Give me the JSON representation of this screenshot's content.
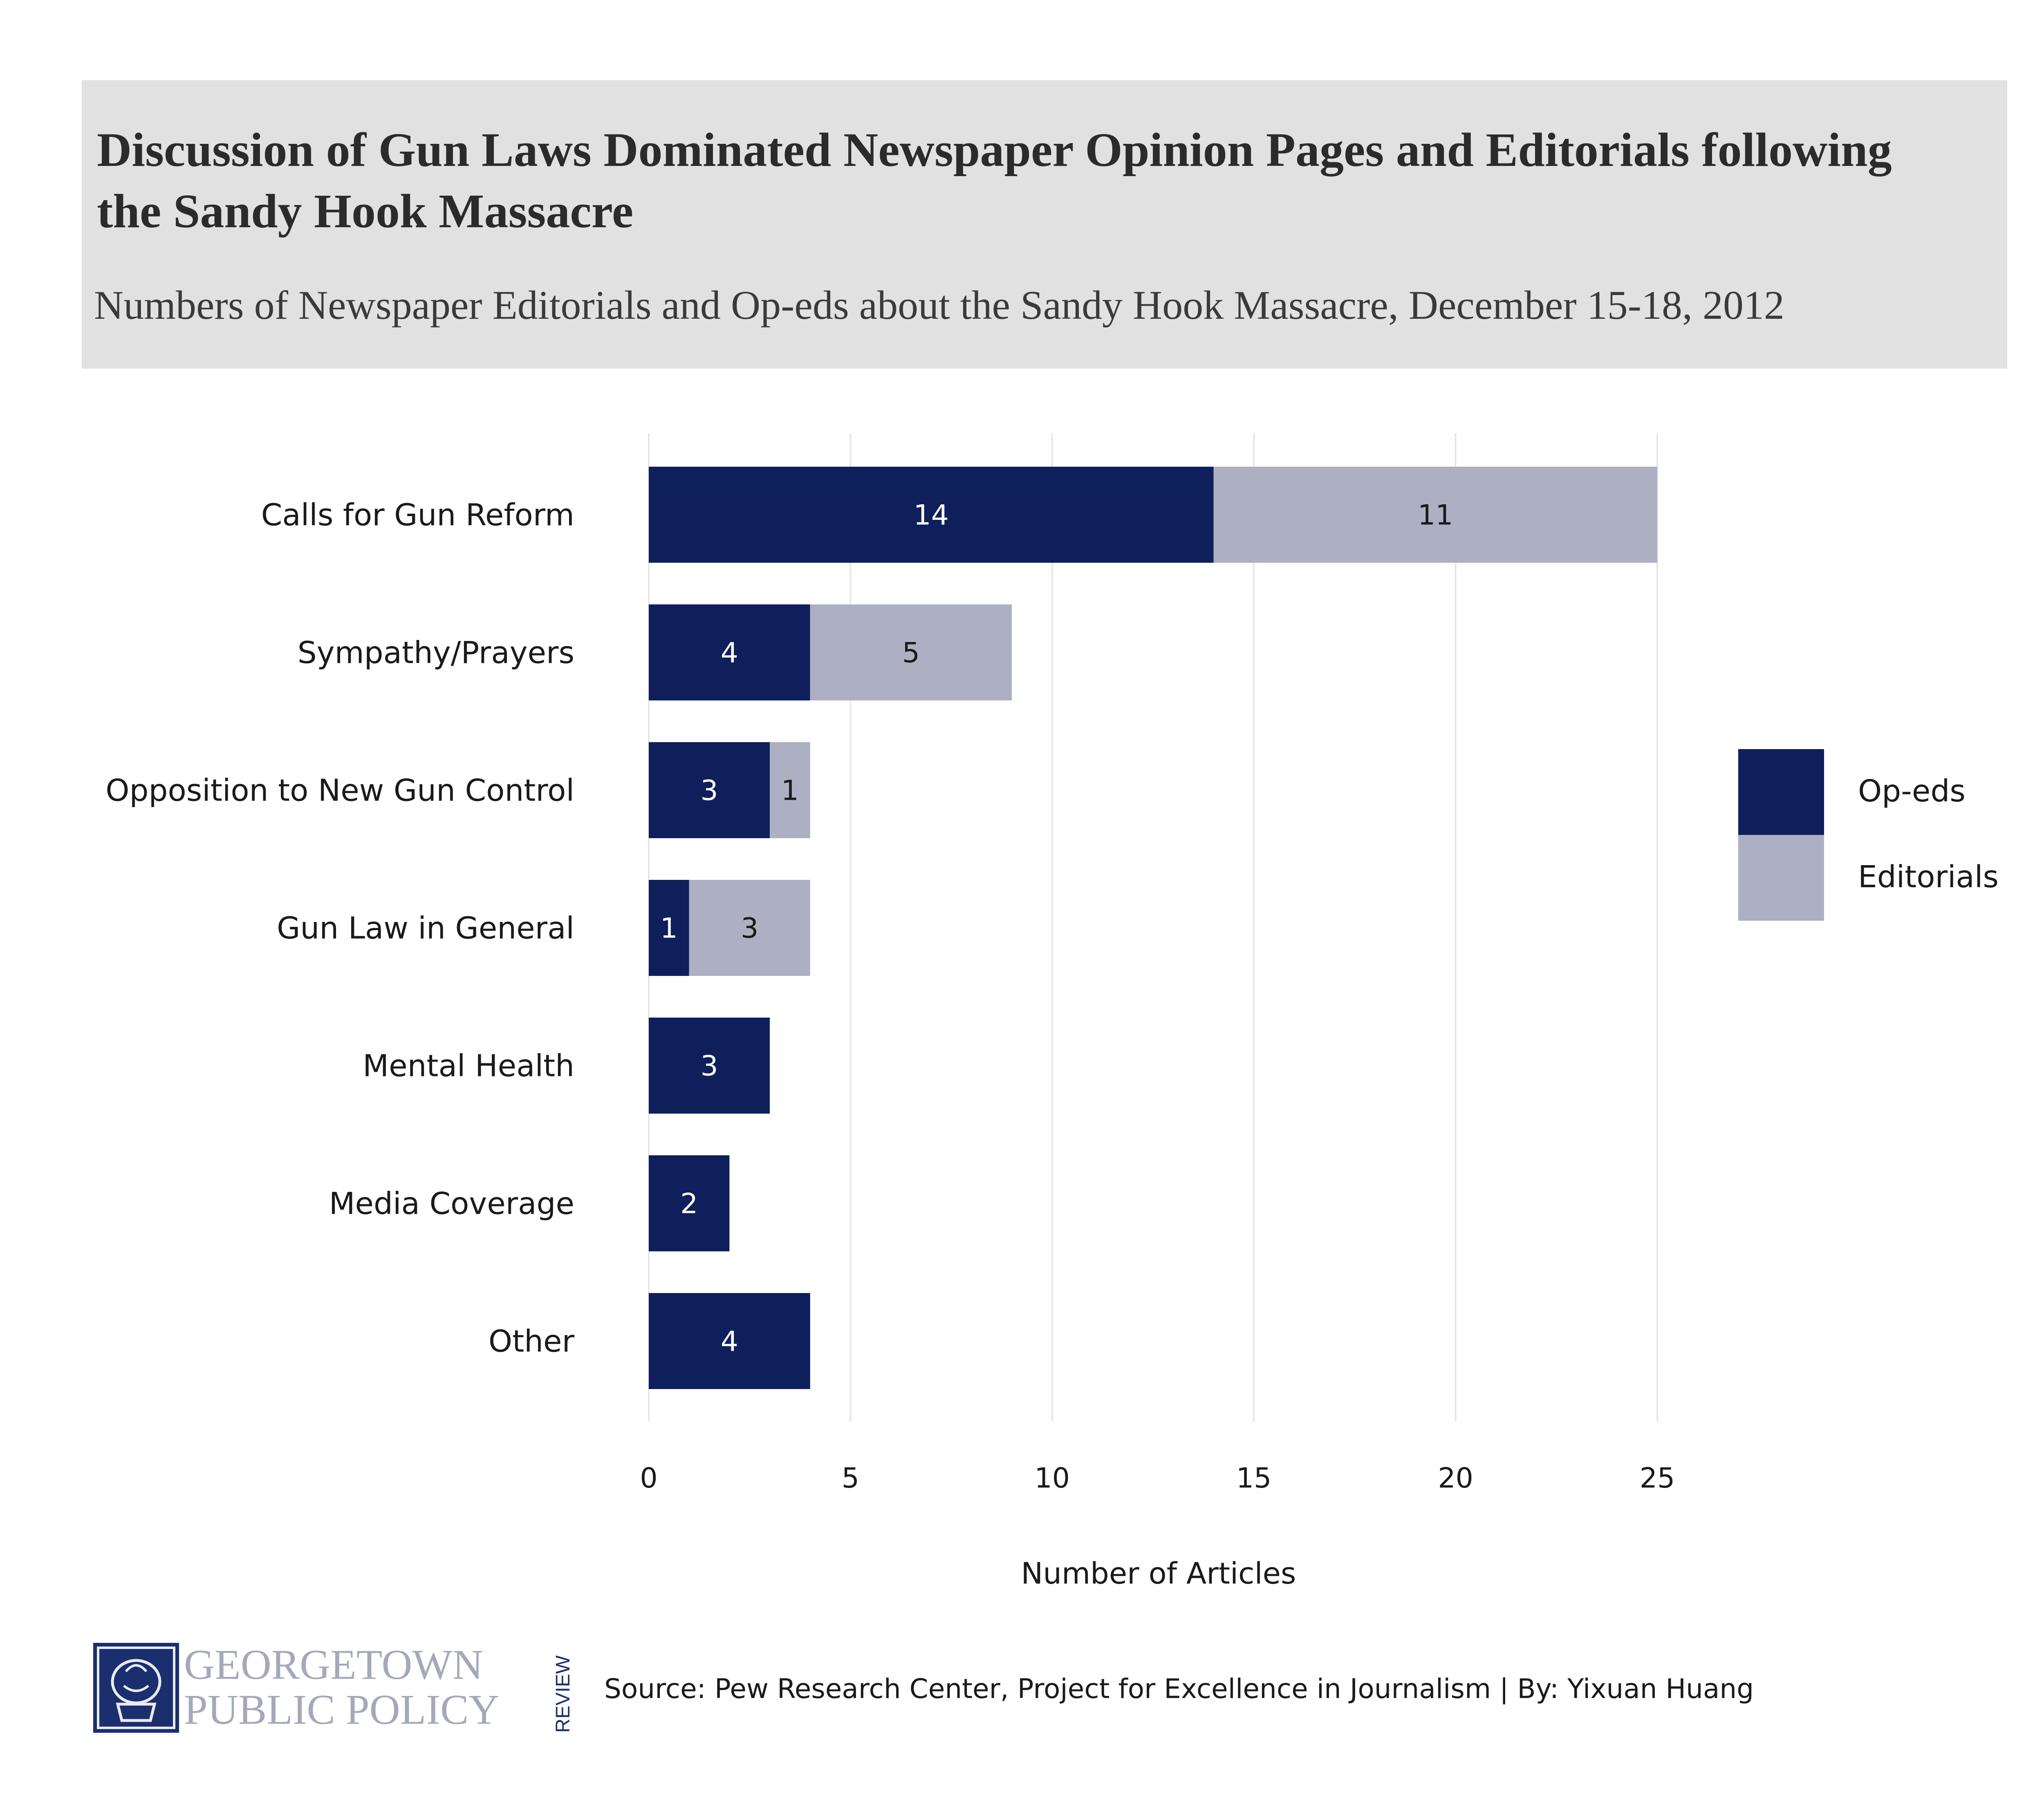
{
  "header": {
    "title": "Discussion of Gun Laws Dominated Newspaper Opinion Pages and Editorials following the Sandy Hook Massacre",
    "subtitle": "Numbers of Newspaper Editorials and Op-eds about the Sandy Hook Massacre, December 15-18, 2012"
  },
  "colors": {
    "header_background": "#e1e1e1",
    "oped": "#0e1f5b",
    "editorial": "#adb0c2",
    "grid": "#e6e6e6",
    "logo_text": "#a4a9ba"
  },
  "chart_data": {
    "type": "bar",
    "orientation": "horizontal",
    "stacked": true,
    "title": "Discussion of Gun Laws Dominated Newspaper Opinion Pages and Editorials following the Sandy Hook Massacre",
    "subtitle": "Numbers of Newspaper Editorials and Op-eds about the Sandy Hook Massacre, December 15-18, 2012",
    "categories": [
      "Calls for Gun Reform",
      "Sympathy/Prayers",
      "Opposition to New Gun Control",
      "Gun Law in General",
      "Mental Health",
      "Media Coverage",
      "Other"
    ],
    "series": [
      {
        "name": "Op-eds",
        "values": [
          14,
          4,
          3,
          1,
          3,
          2,
          4
        ]
      },
      {
        "name": "Editorials",
        "values": [
          11,
          5,
          1,
          3,
          0,
          0,
          0
        ]
      }
    ],
    "xlabel": "Number of Articles",
    "ylabel": "",
    "xlim": [
      0,
      25
    ],
    "xticks": [
      0,
      5,
      10,
      15,
      20,
      25
    ],
    "grid": "vertical",
    "legend": "right",
    "data_labels": true
  },
  "footer": {
    "logo_line1": "GEORGETOWN",
    "logo_line2": "PUBLIC POLICY",
    "logo_line3": "REVIEW",
    "source": "Source: Pew Research Center, Project for Excellence in Journalism | By: Yixuan Huang"
  }
}
